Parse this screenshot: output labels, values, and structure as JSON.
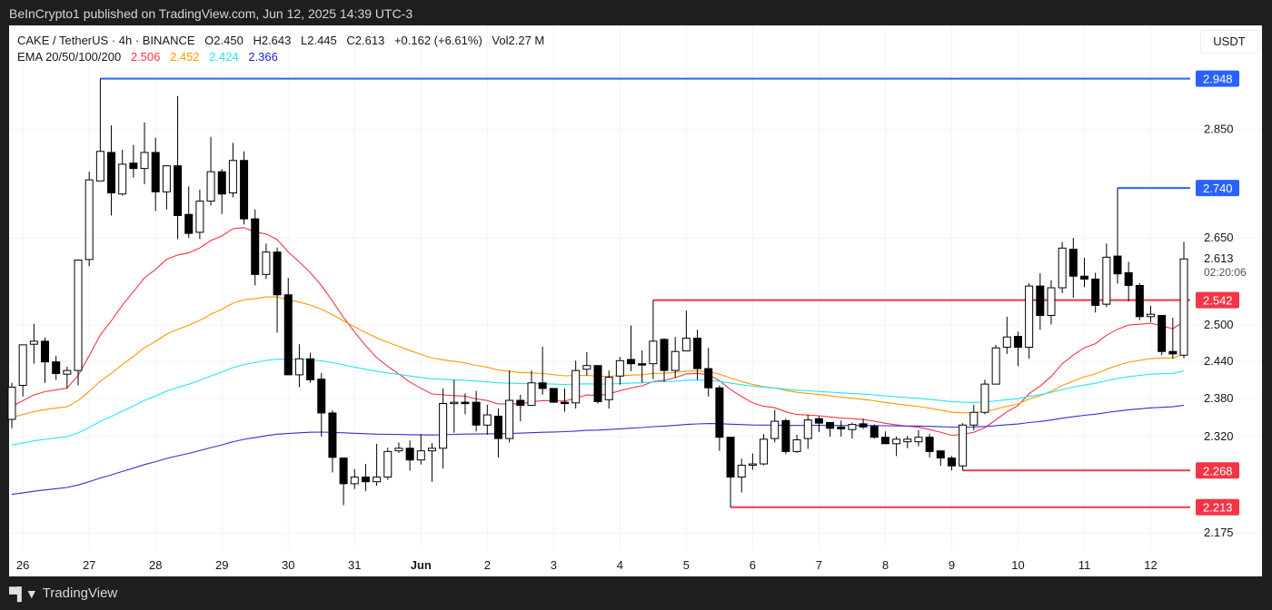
{
  "published": "BeInCrypto1 published on TradingView.com, Jun 12, 2025 14:39 UTC-3",
  "legend": {
    "symbol": "CAKE / TetherUS · 4h · BINANCE",
    "open": "O2.450",
    "high": "H2.643",
    "low": "L2.445",
    "close": "C2.613",
    "change": "+0.162 (+6.61%)",
    "volume": "Vol2.27 M",
    "ema_label": "EMA 20/50/100/200",
    "ema_values": [
      "2.506",
      "2.452",
      "2.424",
      "2.366"
    ]
  },
  "currency_button": "USDT",
  "footer": {
    "logo": "TV",
    "brand": "TradingView"
  },
  "colors": {
    "up_body": "#ffffff",
    "down_body": "#000000",
    "ema20": "#f23645",
    "ema50": "#ff9800",
    "ema100": "#26e5f0",
    "ema200": "#3030d8",
    "level_blue": "#2962ff",
    "level_red": "#f23645"
  },
  "chart_data": {
    "type": "candlestick",
    "interval": "4h",
    "scale": "log",
    "grid": true,
    "ylim": [
      2.13,
      3.0
    ],
    "y_ticks": [
      "2.850",
      "2.650",
      "2.500",
      "2.440",
      "2.380",
      "2.320",
      "2.175"
    ],
    "x_ticks": [
      {
        "label": "26",
        "index": 1
      },
      {
        "label": "27",
        "index": 7
      },
      {
        "label": "28",
        "index": 13
      },
      {
        "label": "29",
        "index": 19
      },
      {
        "label": "30",
        "index": 25
      },
      {
        "label": "31",
        "index": 31
      },
      {
        "label": "Jun",
        "index": 37,
        "bold": true
      },
      {
        "label": "2",
        "index": 43
      },
      {
        "label": "3",
        "index": 49
      },
      {
        "label": "4",
        "index": 55
      },
      {
        "label": "5",
        "index": 61
      },
      {
        "label": "6",
        "index": 67
      },
      {
        "label": "7",
        "index": 73
      },
      {
        "label": "8",
        "index": 79
      },
      {
        "label": "9",
        "index": 85
      },
      {
        "label": "10",
        "index": 91
      },
      {
        "label": "11",
        "index": 97
      },
      {
        "label": "12",
        "index": 103
      }
    ],
    "candles": [
      [
        2.347,
        2.405,
        2.333,
        2.398
      ],
      [
        2.401,
        2.467,
        2.383,
        2.467
      ],
      [
        2.468,
        2.502,
        2.436,
        2.473
      ],
      [
        2.473,
        2.479,
        2.405,
        2.439
      ],
      [
        2.439,
        2.449,
        2.41,
        2.42
      ],
      [
        2.419,
        2.431,
        2.396,
        2.425
      ],
      [
        2.425,
        2.612,
        2.401,
        2.611
      ],
      [
        2.612,
        2.77,
        2.6,
        2.755
      ],
      [
        2.753,
        2.948,
        2.753,
        2.808
      ],
      [
        2.806,
        2.857,
        2.69,
        2.731
      ],
      [
        2.729,
        2.811,
        2.726,
        2.784
      ],
      [
        2.786,
        2.82,
        2.759,
        2.776
      ],
      [
        2.776,
        2.863,
        2.747,
        2.806
      ],
      [
        2.806,
        2.834,
        2.698,
        2.733
      ],
      [
        2.733,
        2.782,
        2.701,
        2.781
      ],
      [
        2.781,
        2.914,
        2.648,
        2.69
      ],
      [
        2.692,
        2.743,
        2.65,
        2.658
      ],
      [
        2.66,
        2.737,
        2.648,
        2.716
      ],
      [
        2.716,
        2.835,
        2.708,
        2.77
      ],
      [
        2.77,
        2.775,
        2.693,
        2.729
      ],
      [
        2.731,
        2.824,
        2.723,
        2.791
      ],
      [
        2.791,
        2.808,
        2.674,
        2.684
      ],
      [
        2.684,
        2.701,
        2.567,
        2.586
      ],
      [
        2.586,
        2.64,
        2.578,
        2.625
      ],
      [
        2.625,
        2.633,
        2.487,
        2.551
      ],
      [
        2.551,
        2.58,
        2.418,
        2.418
      ],
      [
        2.418,
        2.468,
        2.398,
        2.444
      ],
      [
        2.444,
        2.454,
        2.405,
        2.41
      ],
      [
        2.411,
        2.421,
        2.32,
        2.357
      ],
      [
        2.357,
        2.361,
        2.265,
        2.288
      ],
      [
        2.287,
        2.287,
        2.216,
        2.248
      ],
      [
        2.248,
        2.27,
        2.24,
        2.258
      ],
      [
        2.258,
        2.278,
        2.237,
        2.251
      ],
      [
        2.251,
        2.309,
        2.245,
        2.258
      ],
      [
        2.258,
        2.303,
        2.254,
        2.297
      ],
      [
        2.298,
        2.311,
        2.295,
        2.302
      ],
      [
        2.302,
        2.314,
        2.268,
        2.284
      ],
      [
        2.284,
        2.324,
        2.277,
        2.298
      ],
      [
        2.298,
        2.31,
        2.251,
        2.302
      ],
      [
        2.302,
        2.396,
        2.271,
        2.372
      ],
      [
        2.373,
        2.41,
        2.326,
        2.374
      ],
      [
        2.374,
        2.388,
        2.355,
        2.373
      ],
      [
        2.374,
        2.392,
        2.328,
        2.338
      ],
      [
        2.338,
        2.37,
        2.323,
        2.354
      ],
      [
        2.352,
        2.364,
        2.288,
        2.317
      ],
      [
        2.317,
        2.425,
        2.311,
        2.377
      ],
      [
        2.377,
        2.386,
        2.344,
        2.369
      ],
      [
        2.369,
        2.425,
        2.369,
        2.405
      ],
      [
        2.405,
        2.464,
        2.386,
        2.396
      ],
      [
        2.396,
        2.396,
        2.373,
        2.374
      ],
      [
        2.374,
        2.396,
        2.359,
        2.372
      ],
      [
        2.373,
        2.441,
        2.364,
        2.425
      ],
      [
        2.427,
        2.455,
        2.417,
        2.433
      ],
      [
        2.433,
        2.433,
        2.372,
        2.375
      ],
      [
        2.378,
        2.425,
        2.364,
        2.414
      ],
      [
        2.416,
        2.447,
        2.402,
        2.441
      ],
      [
        2.443,
        2.499,
        2.424,
        2.436
      ],
      [
        2.436,
        2.458,
        2.405,
        2.434
      ],
      [
        2.436,
        2.542,
        2.411,
        2.473
      ],
      [
        2.476,
        2.478,
        2.407,
        2.425
      ],
      [
        2.425,
        2.48,
        2.413,
        2.456
      ],
      [
        2.457,
        2.524,
        2.457,
        2.478
      ],
      [
        2.478,
        2.492,
        2.41,
        2.428
      ],
      [
        2.428,
        2.462,
        2.383,
        2.397
      ],
      [
        2.397,
        2.401,
        2.298,
        2.319
      ],
      [
        2.319,
        2.319,
        2.213,
        2.258
      ],
      [
        2.258,
        2.286,
        2.235,
        2.276
      ],
      [
        2.276,
        2.294,
        2.269,
        2.278
      ],
      [
        2.278,
        2.324,
        2.276,
        2.316
      ],
      [
        2.317,
        2.362,
        2.311,
        2.344
      ],
      [
        2.345,
        2.348,
        2.293,
        2.297
      ],
      [
        2.297,
        2.323,
        2.295,
        2.315
      ],
      [
        2.317,
        2.354,
        2.301,
        2.346
      ],
      [
        2.348,
        2.352,
        2.327,
        2.341
      ],
      [
        2.342,
        2.342,
        2.32,
        2.333
      ],
      [
        2.335,
        2.345,
        2.32,
        2.332
      ],
      [
        2.331,
        2.342,
        2.317,
        2.339
      ],
      [
        2.34,
        2.348,
        2.332,
        2.335
      ],
      [
        2.336,
        2.339,
        2.317,
        2.319
      ],
      [
        2.319,
        2.328,
        2.309,
        2.309
      ],
      [
        2.309,
        2.32,
        2.29,
        2.316
      ],
      [
        2.312,
        2.321,
        2.302,
        2.316
      ],
      [
        2.312,
        2.33,
        2.305,
        2.319
      ],
      [
        2.319,
        2.324,
        2.288,
        2.297
      ],
      [
        2.298,
        2.298,
        2.275,
        2.287
      ],
      [
        2.287,
        2.29,
        2.268,
        2.275
      ],
      [
        2.275,
        2.341,
        2.268,
        2.338
      ],
      [
        2.338,
        2.37,
        2.33,
        2.358
      ],
      [
        2.358,
        2.41,
        2.355,
        2.403
      ],
      [
        2.403,
        2.467,
        2.403,
        2.462
      ],
      [
        2.463,
        2.514,
        2.452,
        2.48
      ],
      [
        2.481,
        2.489,
        2.432,
        2.463
      ],
      [
        2.463,
        2.571,
        2.444,
        2.566
      ],
      [
        2.566,
        2.588,
        2.492,
        2.516
      ],
      [
        2.516,
        2.576,
        2.501,
        2.563
      ],
      [
        2.563,
        2.643,
        2.554,
        2.632
      ],
      [
        2.63,
        2.65,
        2.546,
        2.583
      ],
      [
        2.583,
        2.615,
        2.564,
        2.578
      ],
      [
        2.578,
        2.589,
        2.521,
        2.533
      ],
      [
        2.535,
        2.64,
        2.53,
        2.616
      ],
      [
        2.618,
        2.74,
        2.57,
        2.587
      ],
      [
        2.589,
        2.608,
        2.54,
        2.567
      ],
      [
        2.567,
        2.571,
        2.508,
        2.514
      ],
      [
        2.514,
        2.532,
        2.505,
        2.518
      ],
      [
        2.516,
        2.516,
        2.45,
        2.456
      ],
      [
        2.456,
        2.512,
        2.444,
        2.452
      ],
      [
        2.45,
        2.643,
        2.445,
        2.613
      ]
    ],
    "candle_format": [
      "open",
      "high",
      "low",
      "close"
    ],
    "ema_periods": [
      20,
      50,
      100,
      200
    ],
    "levels": [
      {
        "price": 2.948,
        "label": "2.948",
        "color": "blue",
        "from_index": 8
      },
      {
        "price": 2.74,
        "label": "2.740",
        "color": "blue",
        "from_index": 100
      },
      {
        "price": 2.542,
        "label": "2.542",
        "color": "red",
        "from_index": 58
      },
      {
        "price": 2.268,
        "label": "2.268",
        "color": "red",
        "from_index": 86
      },
      {
        "price": 2.213,
        "label": "2.213",
        "color": "red",
        "from_index": 65
      }
    ],
    "last_price": {
      "label": "2.613",
      "countdown": "02:20:06"
    }
  }
}
